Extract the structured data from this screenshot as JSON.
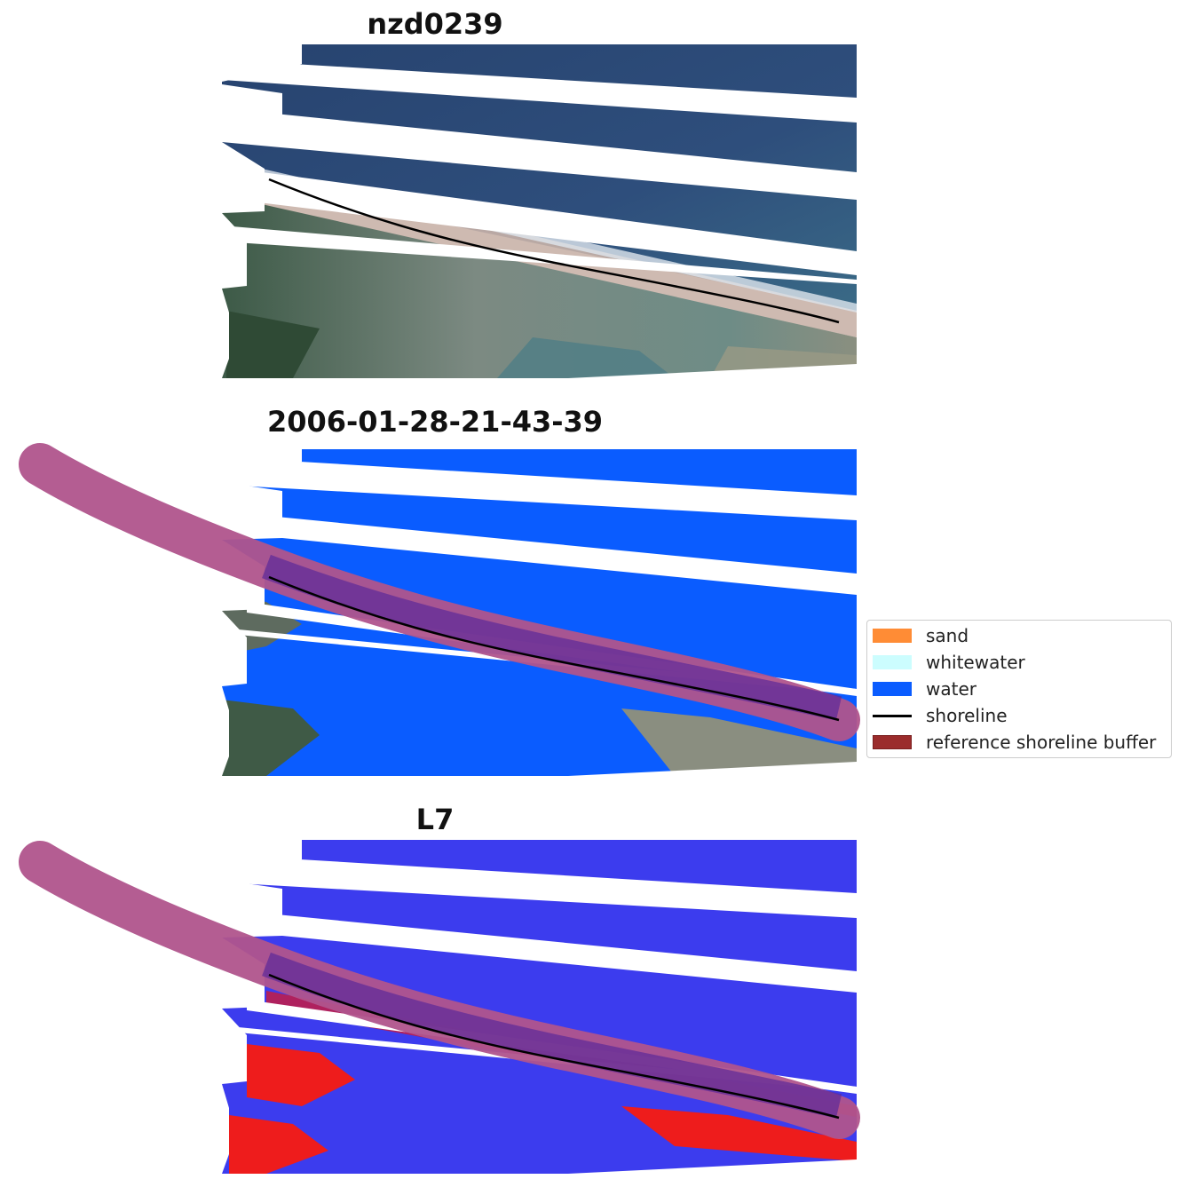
{
  "panels": [
    {
      "title": "nzd0239"
    },
    {
      "title": "2006-01-28-21-43-39"
    },
    {
      "title": "L7"
    }
  ],
  "legend": {
    "items": [
      {
        "label": "sand",
        "color": "#ff8c35",
        "kind": "patch"
      },
      {
        "label": "whitewater",
        "color": "#ccfdfe",
        "kind": "patch"
      },
      {
        "label": "water",
        "color": "#0a5cff",
        "kind": "patch"
      },
      {
        "label": "shoreline",
        "color": "#000000",
        "kind": "line"
      },
      {
        "label": "reference shoreline buffer",
        "color": "#9b2c2c",
        "kind": "patch",
        "edge": "#7a1f1f"
      }
    ]
  },
  "colors": {
    "ocean_rgb": "#2a4a7a",
    "land_rgb": "#6d7a70",
    "water_class": "#0a5cff",
    "buffer_overlay": "#b0548c",
    "buffer_over_water": "#5b2a9a",
    "index_positive": "#3c3cee",
    "index_negative": "#ee1c1c",
    "shoreline": "#000000"
  }
}
